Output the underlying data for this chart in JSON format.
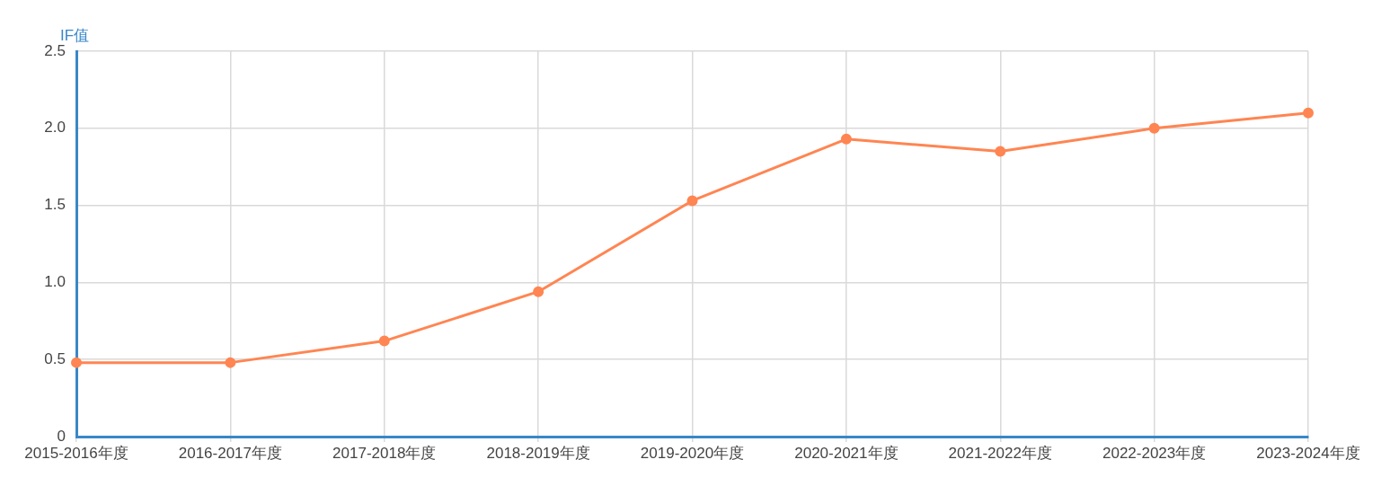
{
  "chart_data": {
    "type": "line",
    "ylabel": "IF值",
    "categories": [
      "2015-2016年度",
      "2016-2017年度",
      "2017-2018年度",
      "2018-2019年度",
      "2019-2020年度",
      "2020-2021年度",
      "2021-2022年度",
      "2022-2023年度",
      "2023-2024年度"
    ],
    "series": [
      {
        "color": "#ff8552",
        "values": [
          0.48,
          0.48,
          0.62,
          0.94,
          1.53,
          1.93,
          1.85,
          2.0,
          2.1
        ]
      }
    ],
    "ylim": [
      0,
      2.5
    ],
    "yticks": [
      0,
      0.5,
      {
        "value": 1,
        "label": "1.0"
      },
      1.5,
      {
        "value": 2,
        "label": "2.0"
      },
      2.5
    ],
    "grid": true,
    "legend": false,
    "marker": "circle",
    "line_style": "solid"
  }
}
